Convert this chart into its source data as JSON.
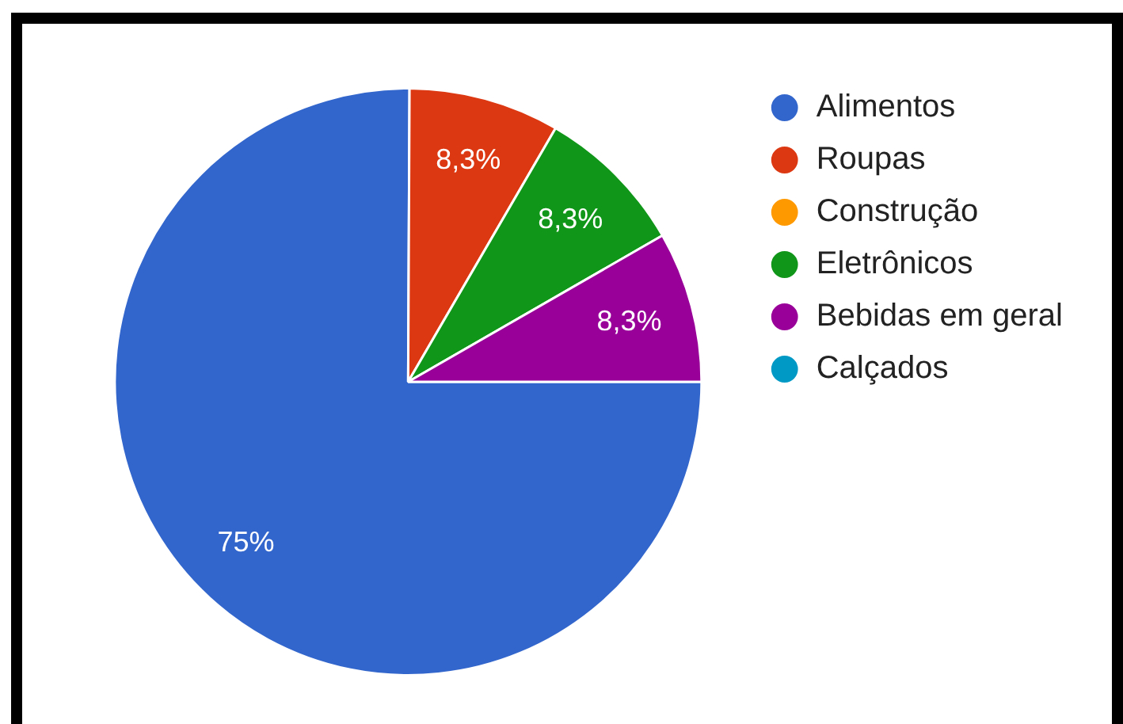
{
  "chart_data": {
    "type": "pie",
    "categories": [
      "Alimentos",
      "Roupas",
      "Construção",
      "Eletrônicos",
      "Bebidas em geral",
      "Calçados"
    ],
    "values": [
      75,
      8.3,
      0,
      8.3,
      8.3,
      0
    ],
    "colors": [
      "#3366cc",
      "#dc3912",
      "#ff9900",
      "#109618",
      "#990099",
      "#0099c6"
    ],
    "value_labels": [
      "75%",
      "8,3%",
      null,
      "8,3%",
      "8,3%",
      null
    ],
    "legend": "top right"
  }
}
